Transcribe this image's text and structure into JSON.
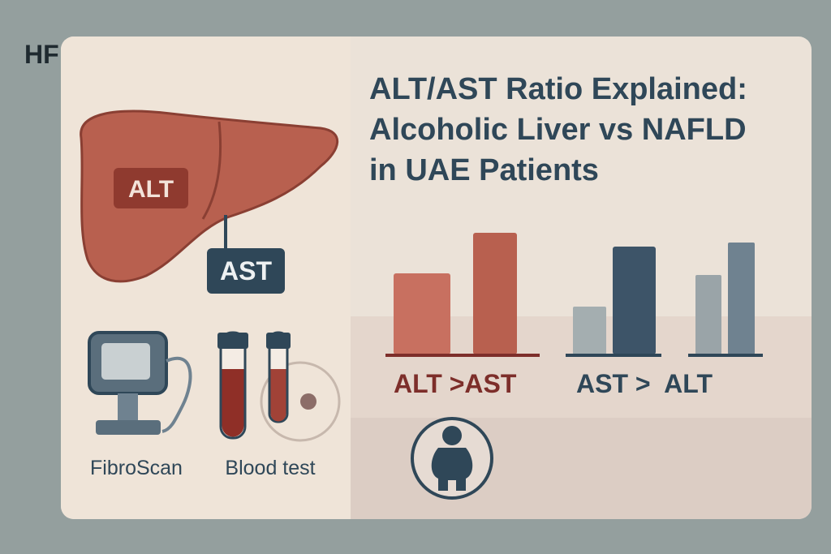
{
  "logo": "HF",
  "title": [
    "ALT/AST Ratio Explained:",
    "Alcoholic Liver vs NAFLD",
    "in UAE Patients"
  ],
  "liver": {
    "labels": [
      "ALT",
      "AST"
    ]
  },
  "comparisons": [
    {
      "label": "ALT >AST"
    },
    {
      "label": "AST >  ALT"
    }
  ],
  "icons": [
    {
      "label": "FibroScan"
    },
    {
      "label": "Blood test"
    }
  ]
}
